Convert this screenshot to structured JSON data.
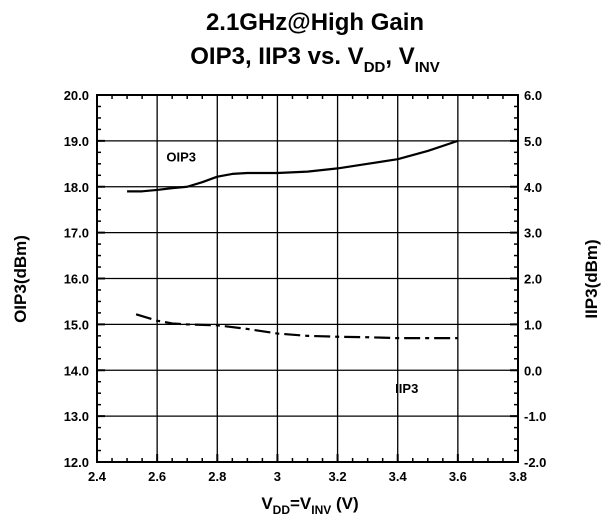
{
  "chart_data": {
    "type": "line",
    "title_line1": "2.1GHz@High Gain",
    "title_line2_prefix": "OIP3, IIP3 vs. V",
    "title_line2_sub1": "DD",
    "title_line2_mid": ", V",
    "title_line2_sub2": "INV",
    "xlabel_prefix": "V",
    "xlabel_sub1": "DD",
    "xlabel_mid": "=V",
    "xlabel_sub2": "INV",
    "xlabel_suffix": " (V)",
    "ylabel_left": "OIP3(dBm)",
    "ylabel_right": "IIP3(dBm)",
    "xlim": [
      2.4,
      3.8
    ],
    "ylim_left": [
      12.0,
      20.0
    ],
    "ylim_right": [
      -2.0,
      6.0
    ],
    "x_ticks": [
      "2.4",
      "2.6",
      "2.8",
      "3",
      "3.2",
      "3.4",
      "3.6",
      "3.8"
    ],
    "y_left_ticks": [
      "12.0",
      "13.0",
      "14.0",
      "15.0",
      "16.0",
      "17.0",
      "18.0",
      "19.0",
      "20.0"
    ],
    "y_right_ticks": [
      "-2.0",
      "-1.0",
      "0.0",
      "1.0",
      "2.0",
      "3.0",
      "4.0",
      "5.0",
      "6.0"
    ],
    "grid": true,
    "series": [
      {
        "name": "OIP3",
        "axis": "left",
        "style": "solid",
        "x": [
          2.5,
          2.55,
          2.6,
          2.65,
          2.7,
          2.75,
          2.8,
          2.85,
          2.9,
          3.0,
          3.1,
          3.2,
          3.3,
          3.4,
          3.5,
          3.6
        ],
        "y": [
          17.9,
          17.9,
          17.93,
          17.97,
          18.0,
          18.1,
          18.22,
          18.28,
          18.3,
          18.3,
          18.33,
          18.4,
          18.5,
          18.6,
          18.78,
          19.0
        ]
      },
      {
        "name": "IIP3",
        "axis": "right",
        "style": "dashdot",
        "x": [
          2.53,
          2.6,
          2.65,
          2.7,
          2.8,
          2.9,
          3.0,
          3.1,
          3.2,
          3.3,
          3.4,
          3.5,
          3.6
        ],
        "y": [
          1.22,
          1.08,
          1.02,
          1.0,
          0.98,
          0.9,
          0.8,
          0.75,
          0.73,
          0.72,
          0.7,
          0.7,
          0.7
        ]
      }
    ],
    "annotations": [
      {
        "text": "OIP3",
        "x": 2.68,
        "y_left": 18.55
      },
      {
        "text": "IIP3",
        "x": 3.43,
        "y_left": 13.5
      }
    ],
    "colors": {
      "line": "#000000",
      "grid": "#000000",
      "background": "#ffffff"
    }
  }
}
